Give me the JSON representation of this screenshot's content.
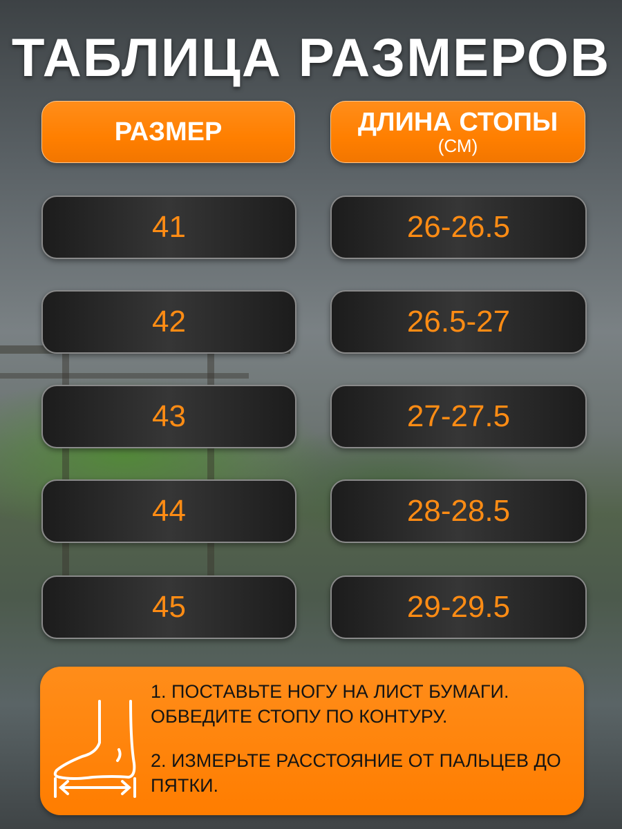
{
  "title": "ТАБЛИЦА РАЗМЕРОВ",
  "headers": {
    "size": "РАЗМЕР",
    "length": "ДЛИНА СТОПЫ",
    "length_unit": "(СМ)"
  },
  "rows": [
    {
      "size": "41",
      "length": "26-26.5"
    },
    {
      "size": "42",
      "length": "26.5-27"
    },
    {
      "size": "43",
      "length": "27-27.5"
    },
    {
      "size": "44",
      "length": "28-28.5"
    },
    {
      "size": "45",
      "length": "29-29.5"
    }
  ],
  "instructions": {
    "icon": "foot-measure-icon",
    "step1": "1. ПОСТАВЬТЕ НОГУ НА ЛИСТ БУМАГИ. ОБВЕДИТЕ СТОПУ ПО КОНТУРУ.",
    "step2": "2. ИЗМЕРЬТЕ РАССТОЯНИЕ ОТ ПАЛЬЦЕВ ДО ПЯТКИ."
  },
  "colors": {
    "accent": "#ff7f00",
    "value_text": "#ff8c14",
    "cell_bg": "#262626"
  }
}
